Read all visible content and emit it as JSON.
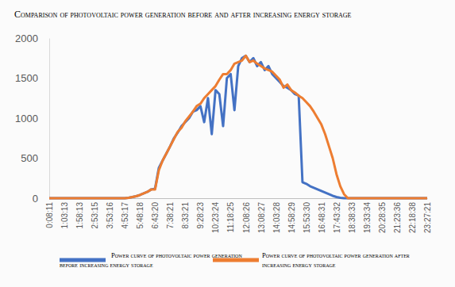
{
  "chart_data": {
    "type": "line",
    "title": "Comparison of photovoltaic power generation before and after increasing energy storage",
    "categories": [
      "0:08:11",
      null,
      null,
      null,
      "1:03:13",
      null,
      null,
      null,
      "1:58:13",
      null,
      null,
      null,
      "2:53:15",
      null,
      null,
      null,
      "3:53:16",
      null,
      null,
      null,
      "4:53:17",
      null,
      null,
      null,
      "5:48:18",
      null,
      null,
      null,
      "6:43:20",
      null,
      null,
      null,
      "7:38:21",
      null,
      null,
      null,
      "8:33:21",
      null,
      null,
      null,
      "9:28:23",
      null,
      null,
      null,
      "10:23:24",
      null,
      null,
      null,
      "11:18:25",
      null,
      null,
      null,
      "12:08:26",
      null,
      null,
      null,
      "13:08:27",
      null,
      null,
      null,
      "14:03:28",
      null,
      null,
      null,
      "14:58:29",
      null,
      null,
      null,
      "15:53:30",
      null,
      null,
      null,
      "16:48:31",
      null,
      null,
      null,
      "17:43:32",
      null,
      null,
      null,
      "18:38:33",
      null,
      null,
      null,
      "19:33:34",
      null,
      null,
      null,
      "20:28:35",
      null,
      null,
      null,
      "21:23:36",
      null,
      null,
      null,
      "22:18:38",
      null,
      null,
      null,
      "23:27:21"
    ],
    "series": [
      {
        "name": "Power curve of photovoltaic power generation before increasing energy storage",
        "color": "#4472c4",
        "values": [
          0,
          0,
          0,
          0,
          0,
          0,
          0,
          0,
          0,
          0,
          0,
          0,
          0,
          0,
          0,
          0,
          0,
          0,
          0,
          0,
          0,
          5,
          15,
          25,
          40,
          60,
          80,
          110,
          120,
          380,
          470,
          560,
          650,
          750,
          820,
          900,
          950,
          1000,
          1080,
          1100,
          1150,
          950,
          1250,
          800,
          1350,
          1300,
          900,
          1500,
          1550,
          1100,
          1650,
          1750,
          1780,
          1700,
          1750,
          1650,
          1700,
          1600,
          1650,
          1550,
          1500,
          1450,
          1400,
          1380,
          1350,
          1300,
          1280,
          200,
          180,
          150,
          130,
          110,
          90,
          70,
          50,
          30,
          15,
          5,
          0,
          0,
          0,
          0,
          0,
          0,
          0,
          0,
          0,
          0,
          0,
          0,
          0,
          0,
          0,
          0,
          0,
          0,
          0,
          0,
          0,
          0,
          0
        ]
      },
      {
        "name": "Power curve of photovoltaic power generation after increasing energy storage",
        "color": "#ed7d31",
        "values": [
          0,
          0,
          0,
          0,
          0,
          0,
          0,
          0,
          0,
          0,
          0,
          0,
          0,
          0,
          0,
          0,
          0,
          0,
          0,
          0,
          0,
          5,
          15,
          25,
          40,
          60,
          80,
          110,
          110,
          350,
          470,
          560,
          650,
          740,
          830,
          880,
          960,
          1020,
          1080,
          1150,
          1180,
          1250,
          1300,
          1350,
          1400,
          1480,
          1550,
          1550,
          1600,
          1680,
          1700,
          1720,
          1780,
          1700,
          1720,
          1680,
          1650,
          1620,
          1600,
          1580,
          1530,
          1480,
          1380,
          1420,
          1350,
          1320,
          1280,
          1250,
          1200,
          1150,
          1080,
          1000,
          920,
          800,
          650,
          500,
          300,
          150,
          50,
          0,
          0,
          0,
          0,
          0,
          0,
          0,
          0,
          0,
          0,
          0,
          0,
          0,
          0,
          0,
          0,
          0,
          0,
          0,
          0,
          0,
          0
        ]
      }
    ],
    "ylim": [
      0,
      2000
    ],
    "yticks": [
      0,
      500,
      1000,
      1500,
      2000
    ],
    "grid": false,
    "legend": "bottom"
  }
}
